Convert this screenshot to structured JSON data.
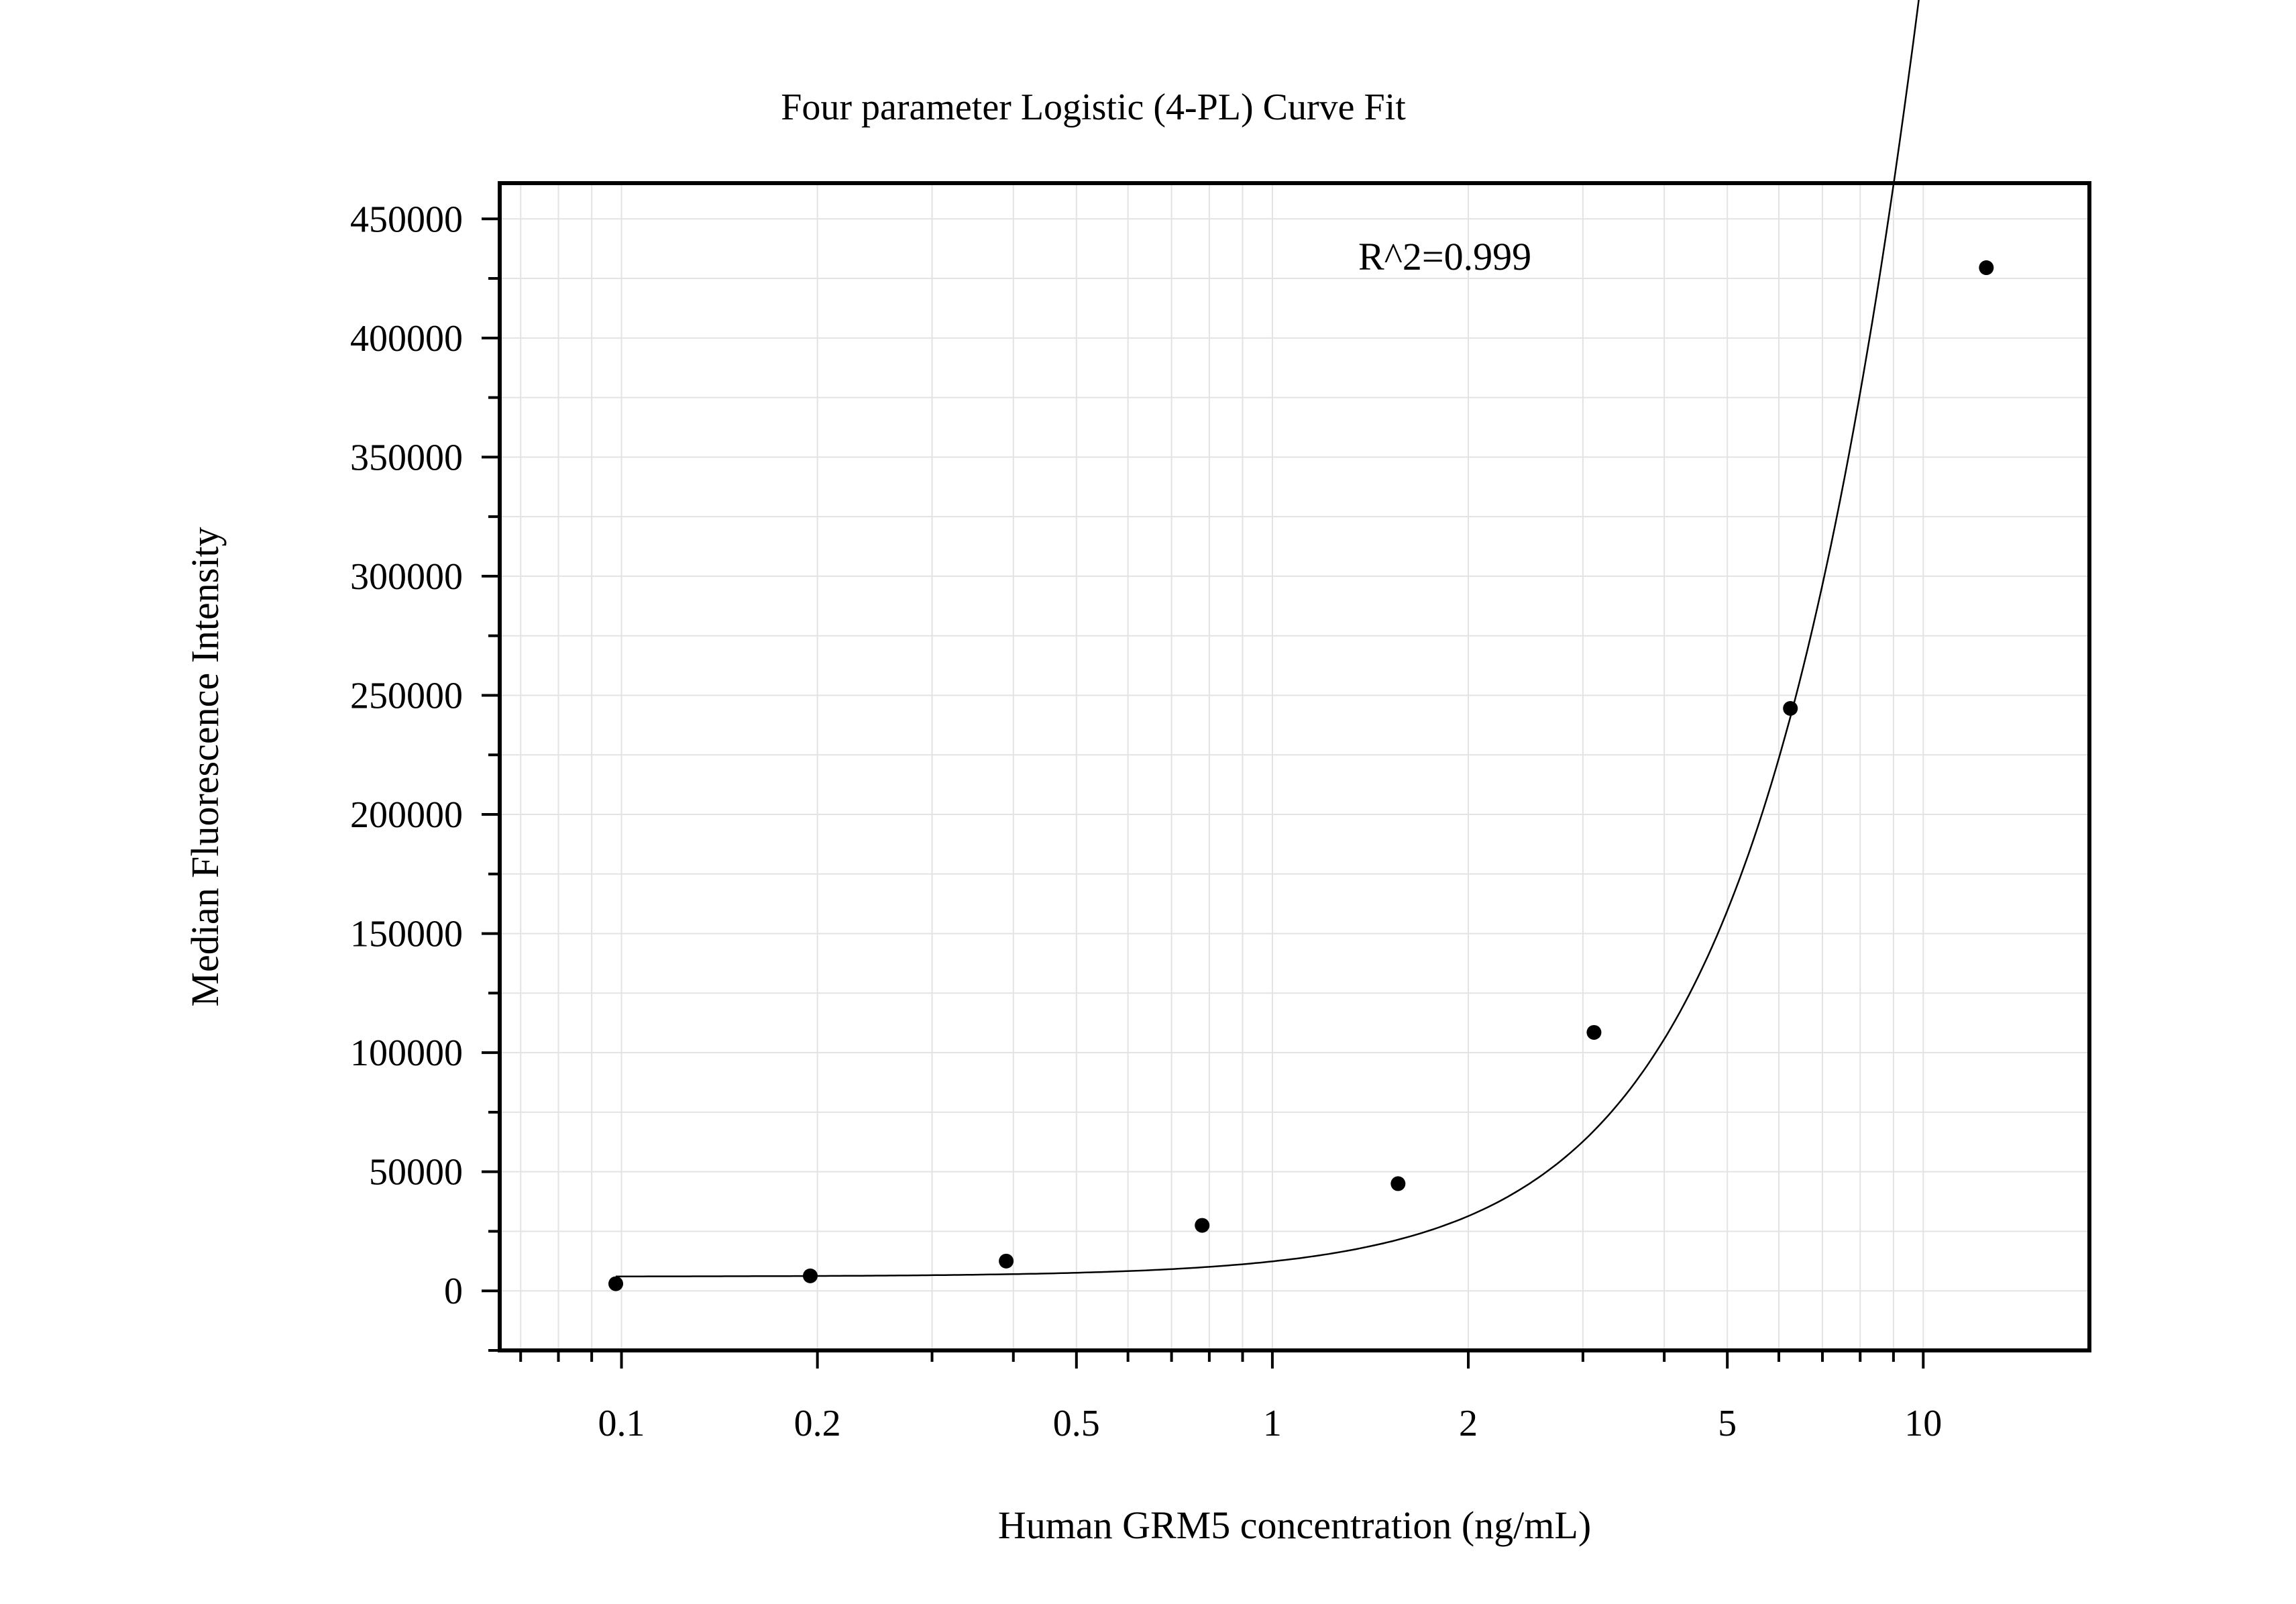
{
  "chart_data": {
    "type": "scatter",
    "title": "Four parameter Logistic (4-PL) Curve Fit",
    "xlabel": "Human GRM5 concentration (ng/mL)",
    "ylabel": "Median Fluorescence Intensity",
    "annotation": "R^2=0.999",
    "x_scale": "log",
    "xlim": [
      0.065,
      18
    ],
    "ylim": [
      -25000,
      465000
    ],
    "x_ticks": [
      0.1,
      0.2,
      0.5,
      1,
      2,
      5,
      10
    ],
    "x_tick_labels": [
      "0.1",
      "0.2",
      "0.5",
      "1",
      "2",
      "5",
      "10"
    ],
    "y_ticks": [
      0,
      50000,
      100000,
      150000,
      200000,
      250000,
      300000,
      350000,
      400000,
      450000
    ],
    "y_tick_labels": [
      "0",
      "50000",
      "100000",
      "150000",
      "200000",
      "250000",
      "300000",
      "350000",
      "400000",
      "450000"
    ],
    "grid": true,
    "series": [
      {
        "type": "scatter",
        "x": [
          0.098,
          0.195,
          0.39,
          0.78,
          1.56,
          3.12,
          6.25,
          12.5
        ],
        "y": [
          3000,
          6300,
          12500,
          27500,
          45000,
          108500,
          244500,
          429500
        ]
      },
      {
        "type": "line",
        "fit": "4PL",
        "A": 6000,
        "B": 2.0,
        "C": 25,
        "D": 4000000
      }
    ],
    "colors": {
      "points": "#000000",
      "curve": "#000000",
      "grid": "#e3e3e3",
      "frame": "#000000"
    }
  }
}
